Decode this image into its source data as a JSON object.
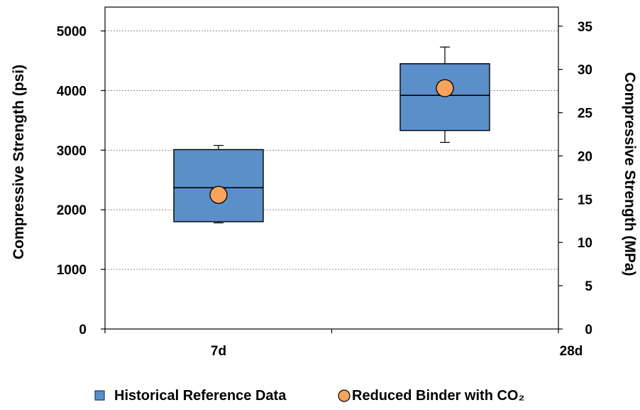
{
  "chart_data": {
    "type": "boxplot",
    "categories": [
      "7d",
      "28d"
    ],
    "ylabel": "Compressive Strength (psi)",
    "ylabel_right": "Compressive Strength (MPa)",
    "ylim": [
      0,
      5400
    ],
    "yticks": [
      0,
      1000,
      2000,
      3000,
      4000,
      5000
    ],
    "ylim_right": [
      0,
      37.2
    ],
    "yticks_right": [
      0,
      5,
      10,
      15,
      20,
      25,
      30,
      35
    ],
    "grid": true,
    "series": [
      {
        "name": "Historical Reference Data",
        "color": "#5B8FC9",
        "boxes": [
          {
            "category": "7d",
            "min": 1780,
            "q1": 1800,
            "median": 2370,
            "q3": 3010,
            "max": 3080
          },
          {
            "category": "28d",
            "min": 3130,
            "q1": 3330,
            "median": 3920,
            "q3": 4450,
            "max": 4730
          }
        ]
      },
      {
        "name": "Reduced Binder with CO₂",
        "color": "#F7A35C",
        "points": [
          {
            "category": "7d",
            "value": 2250
          },
          {
            "category": "28d",
            "value": 4040
          }
        ]
      }
    ],
    "legend": "bottom-center"
  }
}
